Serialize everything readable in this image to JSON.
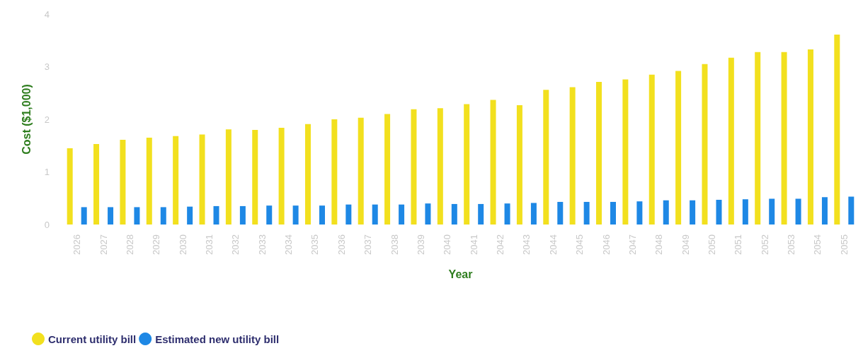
{
  "chart_data": {
    "type": "bar",
    "xlabel": "Year",
    "ylabel": "Cost ($1,000)",
    "categories": [
      "2026",
      "2027",
      "2028",
      "2029",
      "2030",
      "2031",
      "2032",
      "2033",
      "2034",
      "2035",
      "2036",
      "2037",
      "2038",
      "2039",
      "2040",
      "2041",
      "2042",
      "2043",
      "2044",
      "2045",
      "2046",
      "2047",
      "2048",
      "2049",
      "2050",
      "2051",
      "2052",
      "2053",
      "2054",
      "2055"
    ],
    "series": [
      {
        "name": "Current utility bill",
        "color": "#f2e01e",
        "values": [
          1.45,
          1.53,
          1.61,
          1.65,
          1.68,
          1.71,
          1.81,
          1.8,
          1.84,
          1.91,
          2.0,
          2.03,
          2.1,
          2.19,
          2.21,
          2.29,
          2.37,
          2.27,
          2.56,
          2.61,
          2.71,
          2.76,
          2.85,
          2.92,
          3.05,
          3.17,
          3.28,
          3.28,
          3.33,
          3.61
        ]
      },
      {
        "name": "Estimated new utility bill",
        "color": "#1e88e5",
        "values": [
          0.33,
          0.33,
          0.33,
          0.33,
          0.34,
          0.35,
          0.35,
          0.36,
          0.36,
          0.36,
          0.38,
          0.38,
          0.38,
          0.4,
          0.39,
          0.39,
          0.4,
          0.41,
          0.43,
          0.43,
          0.43,
          0.44,
          0.46,
          0.46,
          0.47,
          0.48,
          0.49,
          0.49,
          0.52,
          0.53
        ]
      }
    ],
    "ylim": [
      0,
      4
    ],
    "yticks": [
      0,
      1,
      2,
      3,
      4
    ],
    "grid": false,
    "legend": "bottom left"
  }
}
